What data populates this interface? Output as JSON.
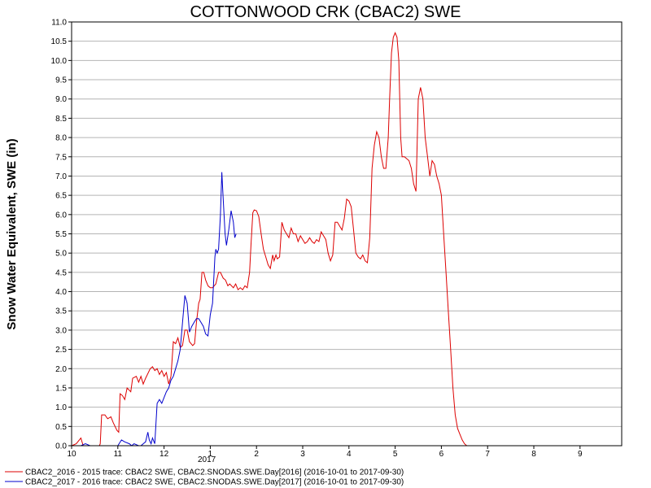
{
  "chart_data": {
    "type": "line",
    "title": "COTTONWOOD CRK (CBAC2) SWE",
    "xlabel": "",
    "ylabel": "Snow Water Equivalent, SWE (in)",
    "year_label": "2017",
    "xlim": [
      10,
      10.85
    ],
    "ylim": [
      0,
      11
    ],
    "x_ticks": [
      "10",
      "11",
      "12",
      "1",
      "2",
      "3",
      "4",
      "5",
      "6",
      "7",
      "8",
      "9"
    ],
    "y_ticks": [
      "0.0",
      "0.5",
      "1.0",
      "1.5",
      "2.0",
      "2.5",
      "3.0",
      "3.5",
      "4.0",
      "4.5",
      "5.0",
      "5.5",
      "6.0",
      "6.5",
      "7.0",
      "7.5",
      "8.0",
      "8.5",
      "9.0",
      "9.5",
      "10.0",
      "10.5",
      "11.0"
    ],
    "grid": true,
    "legend_position": "bottom",
    "series": [
      {
        "name": "CBAC2_2016 - 2015 trace: CBAC2 SWE, CBAC2.SNODAS.SWE.Day[2016] (2016-10-01 to 2017-09-30)",
        "color": "#dd0000",
        "points": [
          [
            10.0,
            0
          ],
          [
            10.1,
            0.05
          ],
          [
            10.2,
            0.2
          ],
          [
            10.25,
            0
          ],
          [
            10.4,
            0
          ],
          [
            10.6,
            0
          ],
          [
            10.62,
            0.05
          ],
          [
            10.65,
            0.8
          ],
          [
            10.72,
            0.8
          ],
          [
            10.78,
            0.7
          ],
          [
            10.85,
            0.75
          ],
          [
            10.9,
            0.6
          ],
          [
            10.98,
            0.4
          ],
          [
            11.02,
            0.35
          ],
          [
            11.05,
            1.35
          ],
          [
            11.1,
            1.3
          ],
          [
            11.15,
            1.2
          ],
          [
            11.2,
            1.5
          ],
          [
            11.28,
            1.4
          ],
          [
            11.32,
            1.75
          ],
          [
            11.4,
            1.8
          ],
          [
            11.45,
            1.65
          ],
          [
            11.5,
            1.8
          ],
          [
            11.55,
            1.6
          ],
          [
            11.6,
            1.75
          ],
          [
            11.7,
            2.0
          ],
          [
            11.75,
            2.05
          ],
          [
            11.8,
            1.95
          ],
          [
            11.85,
            2.0
          ],
          [
            11.9,
            1.85
          ],
          [
            11.95,
            1.95
          ],
          [
            12.0,
            1.8
          ],
          [
            12.05,
            1.9
          ],
          [
            12.1,
            1.6
          ],
          [
            12.15,
            1.8
          ],
          [
            12.2,
            2.7
          ],
          [
            12.25,
            2.65
          ],
          [
            12.3,
            2.8
          ],
          [
            12.35,
            2.55
          ],
          [
            12.4,
            2.6
          ],
          [
            12.45,
            3.0
          ],
          [
            12.5,
            3.0
          ],
          [
            12.55,
            2.7
          ],
          [
            12.62,
            2.6
          ],
          [
            12.66,
            2.65
          ],
          [
            12.7,
            3.2
          ],
          [
            12.75,
            3.7
          ],
          [
            12.78,
            3.8
          ],
          [
            12.82,
            4.5
          ],
          [
            12.86,
            4.5
          ],
          [
            12.9,
            4.3
          ],
          [
            12.95,
            4.15
          ],
          [
            13.0,
            4.1
          ],
          [
            13.05,
            4.1
          ],
          [
            13.12,
            4.2
          ],
          [
            13.18,
            4.5
          ],
          [
            13.22,
            4.5
          ],
          [
            13.28,
            4.35
          ],
          [
            13.33,
            4.3
          ],
          [
            13.38,
            4.15
          ],
          [
            13.42,
            4.2
          ],
          [
            13.5,
            4.1
          ],
          [
            13.55,
            4.2
          ],
          [
            13.6,
            4.05
          ],
          [
            13.65,
            4.1
          ],
          [
            13.7,
            4.05
          ],
          [
            13.75,
            4.15
          ],
          [
            13.8,
            4.1
          ],
          [
            13.85,
            4.5
          ],
          [
            13.88,
            5.2
          ],
          [
            13.92,
            6.05
          ],
          [
            13.95,
            6.12
          ],
          [
            14.0,
            6.1
          ],
          [
            14.05,
            5.95
          ],
          [
            14.1,
            5.5
          ],
          [
            14.15,
            5.1
          ],
          [
            14.2,
            4.9
          ],
          [
            14.25,
            4.7
          ],
          [
            14.3,
            4.6
          ],
          [
            14.35,
            4.95
          ],
          [
            14.38,
            4.8
          ],
          [
            14.42,
            4.95
          ],
          [
            14.45,
            4.85
          ],
          [
            14.5,
            4.9
          ],
          [
            14.55,
            5.8
          ],
          [
            14.6,
            5.6
          ],
          [
            14.65,
            5.5
          ],
          [
            14.7,
            5.4
          ],
          [
            14.75,
            5.65
          ],
          [
            14.8,
            5.5
          ],
          [
            14.85,
            5.5
          ],
          [
            14.9,
            5.3
          ],
          [
            14.95,
            5.45
          ],
          [
            15.0,
            5.35
          ],
          [
            15.05,
            5.25
          ],
          [
            15.1,
            5.3
          ],
          [
            15.15,
            5.4
          ],
          [
            15.2,
            5.3
          ],
          [
            15.25,
            5.25
          ],
          [
            15.3,
            5.35
          ],
          [
            15.35,
            5.3
          ],
          [
            15.4,
            5.55
          ],
          [
            15.45,
            5.45
          ],
          [
            15.5,
            5.35
          ],
          [
            15.55,
            5.0
          ],
          [
            15.6,
            4.8
          ],
          [
            15.65,
            4.95
          ],
          [
            15.7,
            5.8
          ],
          [
            15.75,
            5.8
          ],
          [
            15.8,
            5.7
          ],
          [
            15.85,
            5.6
          ],
          [
            15.9,
            5.9
          ],
          [
            15.95,
            6.4
          ],
          [
            16.0,
            6.35
          ],
          [
            16.05,
            6.2
          ],
          [
            16.1,
            5.6
          ],
          [
            16.15,
            5.0
          ],
          [
            16.2,
            4.9
          ],
          [
            16.25,
            4.85
          ],
          [
            16.3,
            4.95
          ],
          [
            16.35,
            4.8
          ],
          [
            16.4,
            4.75
          ],
          [
            16.45,
            5.4
          ],
          [
            16.5,
            7.2
          ],
          [
            16.55,
            7.8
          ],
          [
            16.6,
            8.15
          ],
          [
            16.65,
            8.0
          ],
          [
            16.7,
            7.5
          ],
          [
            16.75,
            7.2
          ],
          [
            16.8,
            7.2
          ],
          [
            16.85,
            8.0
          ],
          [
            16.88,
            9.0
          ],
          [
            16.92,
            10.2
          ],
          [
            16.96,
            10.6
          ],
          [
            17.0,
            10.72
          ],
          [
            17.04,
            10.6
          ],
          [
            17.08,
            10.0
          ],
          [
            17.12,
            8.0
          ],
          [
            17.15,
            7.5
          ],
          [
            17.2,
            7.5
          ],
          [
            17.3,
            7.4
          ],
          [
            17.35,
            7.2
          ],
          [
            17.4,
            6.8
          ],
          [
            17.45,
            6.6
          ],
          [
            17.5,
            9.0
          ],
          [
            17.55,
            9.3
          ],
          [
            17.6,
            9.0
          ],
          [
            17.65,
            8.0
          ],
          [
            17.7,
            7.5
          ],
          [
            17.75,
            7.0
          ],
          [
            17.8,
            7.4
          ],
          [
            17.85,
            7.3
          ],
          [
            17.9,
            7.0
          ],
          [
            17.95,
            6.8
          ],
          [
            18.0,
            6.5
          ],
          [
            18.05,
            5.5
          ],
          [
            18.1,
            4.5
          ],
          [
            18.15,
            3.5
          ],
          [
            18.2,
            2.5
          ],
          [
            18.25,
            1.5
          ],
          [
            18.3,
            0.8
          ],
          [
            18.35,
            0.45
          ],
          [
            18.4,
            0.3
          ],
          [
            18.45,
            0.15
          ],
          [
            18.5,
            0.05
          ],
          [
            18.55,
            0.0
          ],
          [
            18.7,
            0
          ],
          [
            19.0,
            0
          ],
          [
            20.0,
            0
          ],
          [
            21.0,
            0
          ],
          [
            22.0,
            0
          ],
          [
            22.8,
            0
          ]
        ]
      },
      {
        "name": "CBAC2_2017 - 2016 trace: CBAC2 SWE, CBAC2.SNODAS.SWE.Day[2017] (2016-10-01 to 2017-09-30)",
        "color": "#0000cc",
        "points": [
          [
            10.0,
            0
          ],
          [
            10.2,
            0
          ],
          [
            10.3,
            0.05
          ],
          [
            10.4,
            0
          ],
          [
            10.9,
            0
          ],
          [
            11.0,
            0
          ],
          [
            11.08,
            0.15
          ],
          [
            11.15,
            0.1
          ],
          [
            11.25,
            0.05
          ],
          [
            11.3,
            0
          ],
          [
            11.35,
            0.05
          ],
          [
            11.45,
            0
          ],
          [
            11.5,
            0
          ],
          [
            11.55,
            0.05
          ],
          [
            11.6,
            0.1
          ],
          [
            11.65,
            0.35
          ],
          [
            11.68,
            0.15
          ],
          [
            11.72,
            0.05
          ],
          [
            11.75,
            0.2
          ],
          [
            11.8,
            0.05
          ],
          [
            11.85,
            1.1
          ],
          [
            11.9,
            1.2
          ],
          [
            11.95,
            1.1
          ],
          [
            12.0,
            1.25
          ],
          [
            12.05,
            1.4
          ],
          [
            12.1,
            1.5
          ],
          [
            12.15,
            1.7
          ],
          [
            12.2,
            1.8
          ],
          [
            12.25,
            2.0
          ],
          [
            12.3,
            2.2
          ],
          [
            12.35,
            2.5
          ],
          [
            12.4,
            3.2
          ],
          [
            12.45,
            3.9
          ],
          [
            12.5,
            3.7
          ],
          [
            12.55,
            2.95
          ],
          [
            12.6,
            3.1
          ],
          [
            12.65,
            3.2
          ],
          [
            12.7,
            3.3
          ],
          [
            12.75,
            3.3
          ],
          [
            12.8,
            3.2
          ],
          [
            12.85,
            3.1
          ],
          [
            12.9,
            2.9
          ],
          [
            12.95,
            2.85
          ],
          [
            13.0,
            3.4
          ],
          [
            13.05,
            3.7
          ],
          [
            13.1,
            4.9
          ],
          [
            13.12,
            5.1
          ],
          [
            13.15,
            5.0
          ],
          [
            13.18,
            5.1
          ],
          [
            13.22,
            6.0
          ],
          [
            13.25,
            7.1
          ],
          [
            13.28,
            6.4
          ],
          [
            13.32,
            5.5
          ],
          [
            13.35,
            5.2
          ],
          [
            13.4,
            5.6
          ],
          [
            13.45,
            6.1
          ],
          [
            13.5,
            5.8
          ],
          [
            13.53,
            5.4
          ],
          [
            13.56,
            5.5
          ]
        ]
      }
    ]
  }
}
